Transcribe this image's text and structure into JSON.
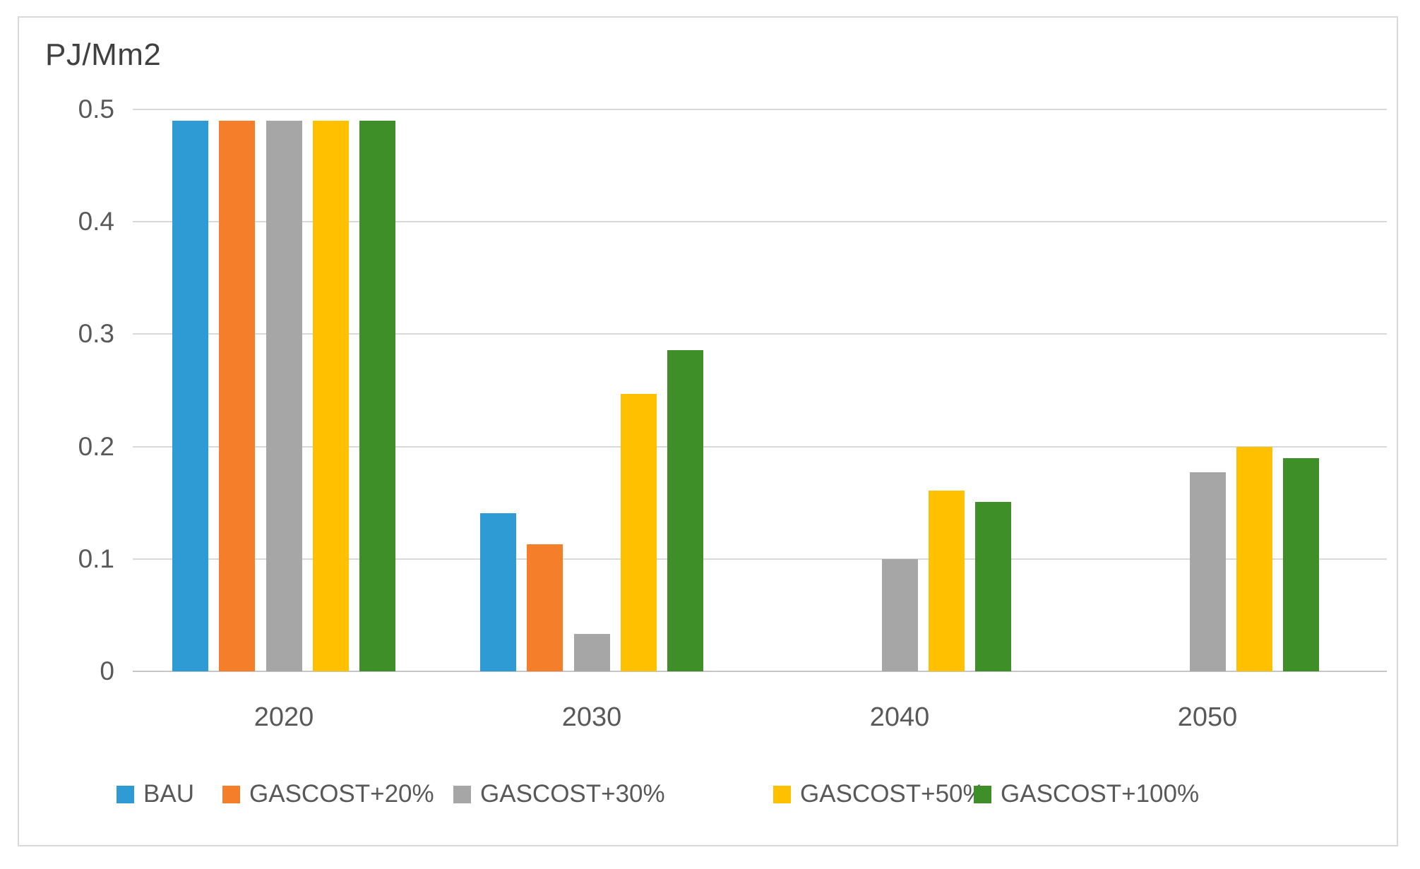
{
  "chart_data": {
    "type": "bar",
    "title": "PJ/Mm2",
    "categories": [
      "2020",
      "2030",
      "2040",
      "2050"
    ],
    "series": [
      {
        "name": "BAU",
        "color": "#2e9bd5",
        "values": [
          0.49,
          0.141,
          0,
          0
        ]
      },
      {
        "name": "GASCOST+20%",
        "color": "#f57e2b",
        "values": [
          0.49,
          0.113,
          0,
          0
        ]
      },
      {
        "name": "GASCOST+30%",
        "color": "#a6a6a6",
        "values": [
          0.49,
          0.033,
          0.1,
          0.177
        ]
      },
      {
        "name": "GASCOST+50%",
        "color": "#ffc000",
        "values": [
          0.49,
          0.247,
          0.161,
          0.2
        ]
      },
      {
        "name": "GASCOST+100%",
        "color": "#3f8f29",
        "values": [
          0.49,
          0.286,
          0.151,
          0.19
        ]
      }
    ],
    "ylim": [
      0,
      0.5
    ],
    "yticks": [
      {
        "value": 0.5,
        "label": "0.5"
      },
      {
        "value": 0.4,
        "label": "0.4"
      },
      {
        "value": 0.3,
        "label": "0.3"
      },
      {
        "value": 0.2,
        "label": "0.2"
      },
      {
        "value": 0.1,
        "label": "0.1"
      },
      {
        "value": 0,
        "label": "0"
      }
    ],
    "grid": true,
    "legend_position": "bottom",
    "colors": {
      "gridline": "#d9d9d9",
      "axis_line": "#c6c6c6",
      "tick_text": "#595959",
      "title_text": "#404040",
      "frame_border": "#d9d9d9",
      "background": "#ffffff"
    }
  }
}
